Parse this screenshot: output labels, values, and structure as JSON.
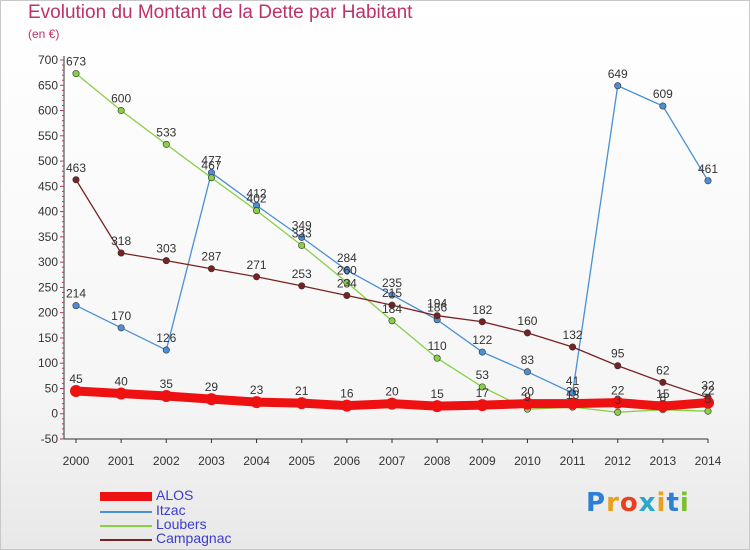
{
  "chart_data": {
    "type": "line",
    "title": "Evolution du Montant de la Dette par Habitant",
    "subtitle": "(en €)",
    "x": [
      "2000",
      "2001",
      "2002",
      "2003",
      "2004",
      "2005",
      "2006",
      "2007",
      "2008",
      "2009",
      "2010",
      "2011",
      "2012",
      "2013",
      "2014"
    ],
    "ylim": [
      -50,
      700
    ],
    "yticks": [
      -50,
      0,
      50,
      100,
      150,
      200,
      250,
      300,
      350,
      400,
      450,
      500,
      550,
      600,
      650,
      700
    ],
    "grid": false,
    "legend_position": "bottom-left",
    "series": [
      {
        "name": "ALOS",
        "color": "#ee1111",
        "values": [
          45,
          40,
          35,
          29,
          23,
          21,
          16,
          20,
          15,
          17,
          20,
          20,
          22,
          15,
          22
        ]
      },
      {
        "name": "Itzac",
        "color": "#4a90d6",
        "values": [
          214,
          170,
          126,
          477,
          412,
          349,
          284,
          235,
          186,
          122,
          83,
          41,
          649,
          609,
          461
        ]
      },
      {
        "name": "Loubers",
        "color": "#88d044",
        "values": [
          673,
          600,
          533,
          467,
          402,
          333,
          260,
          184,
          110,
          53,
          9,
          13,
          3,
          8,
          5
        ]
      },
      {
        "name": "Campagnac",
        "color": "#7a2222",
        "values": [
          463,
          318,
          303,
          287,
          271,
          253,
          234,
          215,
          194,
          182,
          160,
          132,
          95,
          62,
          32
        ]
      }
    ]
  },
  "brand": {
    "letters": [
      "P",
      "r",
      "o",
      "x",
      "i",
      "t",
      "i"
    ]
  }
}
